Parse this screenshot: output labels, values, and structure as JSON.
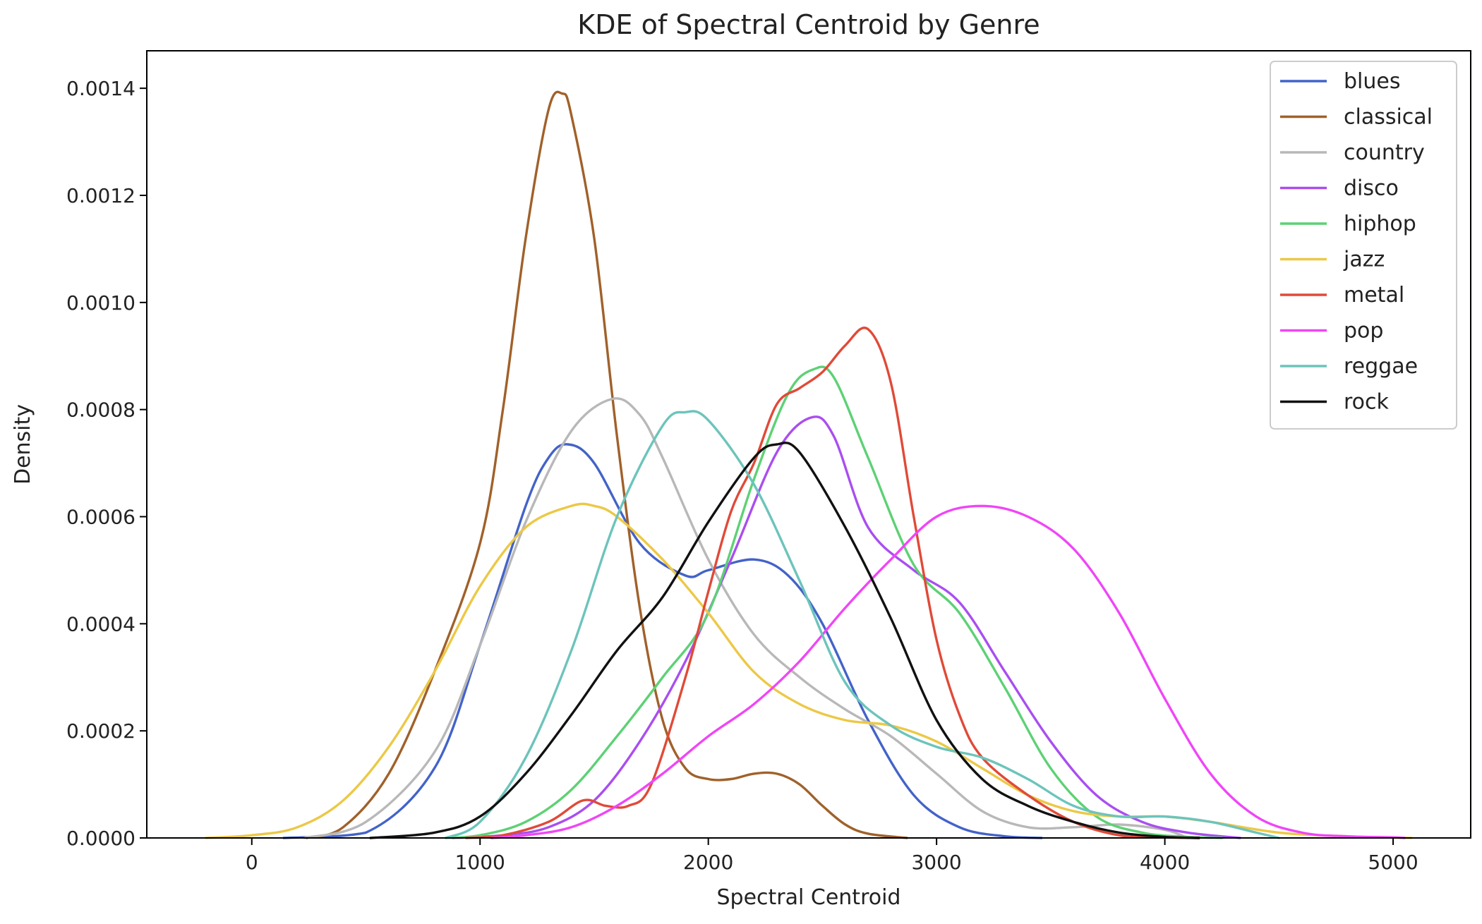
{
  "chart_data": {
    "type": "line",
    "title": "KDE of Spectral Centroid by Genre",
    "xlabel": "Spectral Centroid",
    "ylabel": "Density",
    "xlim": [
      -460,
      5340
    ],
    "ylim": [
      0,
      0.00147
    ],
    "x_ticks": [
      0,
      1000,
      2000,
      3000,
      4000,
      5000
    ],
    "x_tick_labels": [
      "0",
      "1000",
      "2000",
      "3000",
      "4000",
      "5000"
    ],
    "y_ticks": [
      0,
      0.0002,
      0.0004,
      0.0006,
      0.0008,
      0.001,
      0.0012,
      0.0014
    ],
    "y_tick_labels": [
      "0.0000",
      "0.0002",
      "0.0004",
      "0.0006",
      "0.0008",
      "0.0010",
      "0.0012",
      "0.0014"
    ],
    "grid": false,
    "legend_position": "top-right",
    "series": [
      {
        "name": "blues",
        "color": "#4363c8",
        "x": [
          140,
          500,
          800,
          1000,
          1200,
          1300,
          1385,
          1500,
          1700,
          1900,
          2000,
          2200,
          2350,
          2500,
          2700,
          2900,
          3100,
          3300,
          3460
        ],
        "y": [
          0,
          1e-05,
          0.00013,
          0.00036,
          0.00062,
          0.00071,
          0.000735,
          0.0007,
          0.00055,
          0.00049,
          0.0005,
          0.00052,
          0.00049,
          0.0004,
          0.00022,
          8e-05,
          2e-05,
          3e-06,
          0
        ]
      },
      {
        "name": "classical",
        "color": "#a0612a",
        "x": [
          240,
          400,
          600,
          800,
          1000,
          1100,
          1200,
          1300,
          1360,
          1400,
          1500,
          1600,
          1700,
          1800,
          1900,
          2000,
          2100,
          2200,
          2300,
          2400,
          2500,
          2600,
          2700,
          2870
        ],
        "y": [
          0,
          2e-05,
          0.00012,
          0.00031,
          0.00055,
          0.0008,
          0.00112,
          0.00136,
          0.00139,
          0.00135,
          0.00112,
          0.00075,
          0.00043,
          0.00022,
          0.00013,
          0.00011,
          0.00011,
          0.00012,
          0.00012,
          0.0001,
          6e-05,
          2.5e-05,
          8e-06,
          0
        ]
      },
      {
        "name": "country",
        "color": "#b8b8b8",
        "x": [
          230,
          500,
          800,
          1000,
          1200,
          1400,
          1580,
          1700,
          1800,
          2000,
          2200,
          2400,
          2600,
          2800,
          3000,
          3200,
          3400,
          3600,
          3800,
          4000,
          4100
        ],
        "y": [
          0,
          3e-05,
          0.00016,
          0.00036,
          0.00059,
          0.00076,
          0.00082,
          0.00079,
          0.00071,
          0.00052,
          0.00038,
          0.0003,
          0.00024,
          0.00019,
          0.00012,
          5e-05,
          2e-05,
          2e-05,
          2.5e-05,
          1.5e-05,
          0
        ]
      },
      {
        "name": "disco",
        "color": "#a94ef0",
        "x": [
          880,
          1100,
          1300,
          1500,
          1700,
          1900,
          2100,
          2300,
          2450,
          2550,
          2700,
          2900,
          3100,
          3300,
          3500,
          3700,
          3900,
          4100,
          4330
        ],
        "y": [
          0,
          5e-06,
          2e-05,
          7e-05,
          0.00018,
          0.00033,
          0.00052,
          0.00072,
          0.000785,
          0.00075,
          0.00058,
          0.0005,
          0.00044,
          0.00031,
          0.00018,
          8e-05,
          3e-05,
          1e-05,
          0
        ]
      },
      {
        "name": "hiphop",
        "color": "#5dd175",
        "x": [
          850,
          1000,
          1200,
          1400,
          1600,
          1800,
          2000,
          2200,
          2350,
          2460,
          2550,
          2700,
          2900,
          3100,
          3300,
          3500,
          3700,
          3900,
          4100,
          4250
        ],
        "y": [
          0,
          5e-06,
          3e-05,
          9e-05,
          0.00019,
          0.0003,
          0.00042,
          0.00067,
          0.00083,
          0.000875,
          0.00086,
          0.00071,
          0.00051,
          0.00042,
          0.00028,
          0.00013,
          4e-05,
          1e-05,
          2e-06,
          0
        ]
      },
      {
        "name": "jazz",
        "color": "#ecc846",
        "x": [
          -200,
          0,
          200,
          400,
          600,
          800,
          1000,
          1200,
          1400,
          1500,
          1600,
          1800,
          2000,
          2200,
          2400,
          2600,
          2800,
          3000,
          3200,
          3400,
          3600,
          3800,
          4000,
          4200,
          4500,
          4800,
          5080
        ],
        "y": [
          0,
          5e-06,
          2e-05,
          7e-05,
          0.00017,
          0.00031,
          0.00047,
          0.00058,
          0.00062,
          0.00062,
          0.0006,
          0.00052,
          0.00042,
          0.00031,
          0.00025,
          0.00022,
          0.00021,
          0.00018,
          0.00013,
          8e-05,
          5e-05,
          4e-05,
          4e-05,
          3e-05,
          1e-05,
          3e-06,
          0
        ]
      },
      {
        "name": "metal",
        "color": "#e04a38",
        "x": [
          940,
          1100,
          1300,
          1450,
          1550,
          1650,
          1750,
          1900,
          2000,
          2100,
          2200,
          2300,
          2400,
          2500,
          2600,
          2700,
          2800,
          2900,
          3000,
          3100,
          3200,
          3400,
          3600,
          3800,
          4000,
          4150
        ],
        "y": [
          0,
          5e-06,
          3e-05,
          7e-05,
          6e-05,
          6e-05,
          0.0001,
          0.0003,
          0.00046,
          0.00061,
          0.0007,
          0.00081,
          0.00084,
          0.00087,
          0.00092,
          0.00095,
          0.00085,
          0.0006,
          0.00037,
          0.00023,
          0.00015,
          8e-05,
          3e-05,
          5e-06,
          1e-06,
          0
        ]
      },
      {
        "name": "pop",
        "color": "#f045f7",
        "x": [
          1050,
          1200,
          1400,
          1600,
          1800,
          2000,
          2200,
          2400,
          2600,
          2800,
          3000,
          3200,
          3400,
          3600,
          3800,
          4000,
          4200,
          4400,
          4600,
          4800,
          5000,
          5050
        ],
        "y": [
          0,
          5e-06,
          2e-05,
          6e-05,
          0.00012,
          0.00019,
          0.00025,
          0.00033,
          0.00043,
          0.00052,
          0.0006,
          0.00062,
          0.0006,
          0.00054,
          0.00042,
          0.00026,
          0.00012,
          4e-05,
          1e-05,
          3e-06,
          1e-06,
          0
        ]
      },
      {
        "name": "reggae",
        "color": "#6cc4bb",
        "x": [
          850,
          1000,
          1200,
          1400,
          1600,
          1800,
          1900,
          2000,
          2200,
          2400,
          2600,
          2800,
          3000,
          3200,
          3400,
          3600,
          3800,
          4000,
          4200,
          4400,
          4500
        ],
        "y": [
          0,
          3e-05,
          0.00015,
          0.00035,
          0.0006,
          0.00077,
          0.000795,
          0.00078,
          0.00066,
          0.00048,
          0.00029,
          0.00021,
          0.00017,
          0.00015,
          0.00011,
          6e-05,
          4e-05,
          4e-05,
          3e-05,
          1e-05,
          0
        ]
      },
      {
        "name": "rock",
        "color": "#111111",
        "x": [
          520,
          800,
          1000,
          1200,
          1400,
          1600,
          1800,
          2000,
          2200,
          2300,
          2400,
          2600,
          2800,
          3000,
          3200,
          3400,
          3600,
          3800,
          4000,
          4150
        ],
        "y": [
          0,
          1e-05,
          4e-05,
          0.00012,
          0.00023,
          0.00035,
          0.00045,
          0.00059,
          0.00071,
          0.000735,
          0.00072,
          0.00058,
          0.00041,
          0.00022,
          0.00011,
          6e-05,
          3e-05,
          1e-05,
          2e-06,
          0
        ]
      }
    ]
  }
}
